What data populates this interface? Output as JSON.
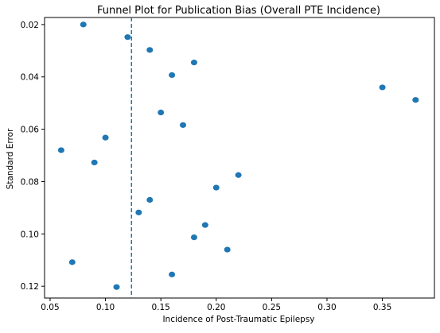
{
  "chart_data": {
    "type": "scatter",
    "title": "Funnel Plot for Publication Bias (Overall PTE Incidence)",
    "xlabel": "Incidence of Post-Traumatic Epilepsy",
    "ylabel": "Standard Error",
    "xlim": [
      0.045,
      0.397
    ],
    "ylim": [
      0.0173,
      0.1245
    ],
    "y_inverted": true,
    "grid": false,
    "xticks": [
      0.05,
      0.1,
      0.15,
      0.2,
      0.25,
      0.3,
      0.35
    ],
    "xtick_labels": [
      "0.05",
      "0.10",
      "0.15",
      "0.20",
      "0.25",
      "0.30",
      "0.35"
    ],
    "yticks": [
      0.02,
      0.04,
      0.06,
      0.08,
      0.1,
      0.12
    ],
    "ytick_labels": [
      "0.02",
      "0.04",
      "0.06",
      "0.08",
      "0.10",
      "0.12"
    ],
    "marker_color": "#1f77b4",
    "reference_line": {
      "x": 0.1235,
      "style": "dashed",
      "color": "#1f77b4"
    },
    "points": [
      {
        "x": 0.08,
        "y": 0.02
      },
      {
        "x": 0.12,
        "y": 0.0248
      },
      {
        "x": 0.14,
        "y": 0.0297
      },
      {
        "x": 0.18,
        "y": 0.0345
      },
      {
        "x": 0.16,
        "y": 0.0393
      },
      {
        "x": 0.35,
        "y": 0.044
      },
      {
        "x": 0.38,
        "y": 0.0488
      },
      {
        "x": 0.15,
        "y": 0.0536
      },
      {
        "x": 0.17,
        "y": 0.0584
      },
      {
        "x": 0.1,
        "y": 0.0632
      },
      {
        "x": 0.06,
        "y": 0.068
      },
      {
        "x": 0.09,
        "y": 0.0727
      },
      {
        "x": 0.22,
        "y": 0.0775
      },
      {
        "x": 0.2,
        "y": 0.0823
      },
      {
        "x": 0.14,
        "y": 0.087
      },
      {
        "x": 0.13,
        "y": 0.0918
      },
      {
        "x": 0.19,
        "y": 0.0966
      },
      {
        "x": 0.18,
        "y": 0.1013
      },
      {
        "x": 0.21,
        "y": 0.106
      },
      {
        "x": 0.07,
        "y": 0.1108
      },
      {
        "x": 0.16,
        "y": 0.1155
      },
      {
        "x": 0.11,
        "y": 0.1203
      }
    ]
  }
}
